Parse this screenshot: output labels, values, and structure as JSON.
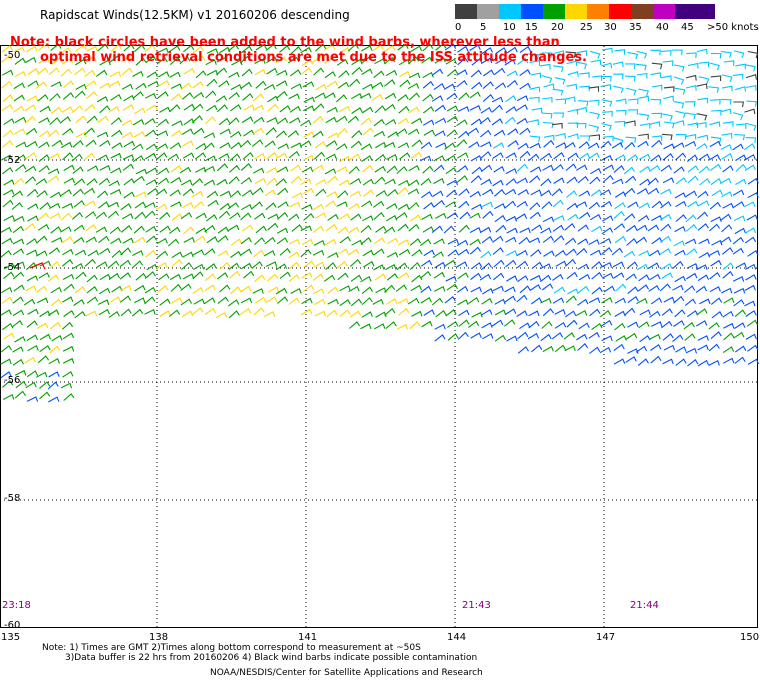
{
  "title": "Rapidscat Winds(12.5KM) v1 20160206 descending",
  "note": {
    "line1": "Note: black circles have been added to the wind barbs, wherever less than",
    "line2": "optimal wind retrieval conditions are met due to the ISS attitude changes."
  },
  "legend": {
    "labels": [
      "0",
      "5",
      "10",
      "15",
      "20",
      "25",
      "30",
      "35",
      "40",
      "45",
      ">50 knots"
    ],
    "colors": [
      "#404040",
      "#a0a0a0",
      "#00c8ff",
      "#0050ff",
      "#00a000",
      "#ffd700",
      "#ff8000",
      "#ff0000",
      "#804020",
      "#c000c0",
      "#400080"
    ]
  },
  "axes": {
    "lat_labels": [
      "-50",
      "-52",
      "-54",
      "-56",
      "-58",
      "-60"
    ],
    "lon_labels": [
      "135",
      "138",
      "141",
      "144",
      "147",
      "150"
    ]
  },
  "times": [
    "23:18",
    "21:43",
    "21:44"
  ],
  "footer": {
    "line1": "Note: 1) Times are GMT 2)Times along bottom correspond to measurement at ~50S",
    "line2": "3)Data buffer is 22 hrs from 20160206 4) Black wind barbs indicate possible contamination",
    "line3": "NOAA/NESDIS/Center for Satellite Applications and Research"
  }
}
